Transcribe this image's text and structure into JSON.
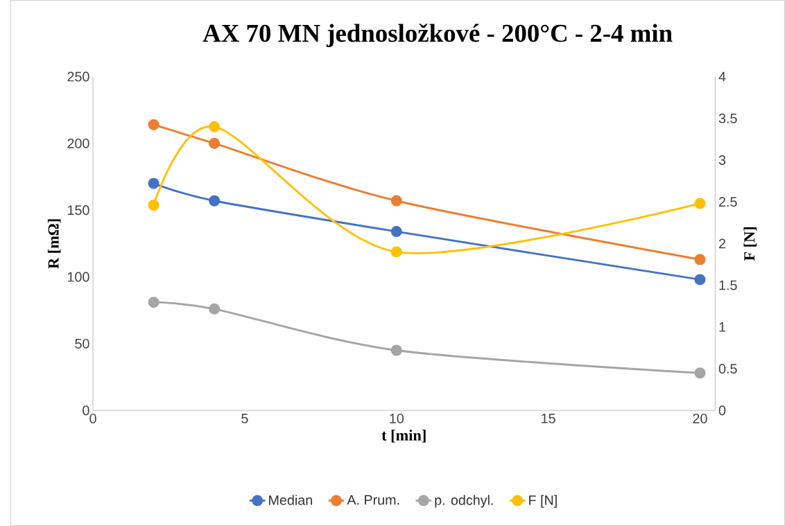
{
  "chart_data": {
    "type": "line",
    "title": "AX 70 MN jednosložkové - 200°C - 2-4 min",
    "xlabel": "t [min]",
    "ylabel": "R [mΩ]",
    "y2label": "F [N]",
    "x": [
      2,
      4,
      10,
      20
    ],
    "series": [
      {
        "name": "Median",
        "color": "#4472c4",
        "values": [
          170,
          157,
          134,
          98
        ]
      },
      {
        "name": "A. Prum.",
        "color": "#ed7d31",
        "values": [
          214,
          200,
          157,
          113
        ]
      },
      {
        "name": "p. odchyl.",
        "color": "#a5a5a5",
        "values": [
          81,
          76,
          45,
          28
        ]
      },
      {
        "name": "F [N]",
        "color": "#ffc000",
        "values": [
          2.46,
          3.4,
          1.9,
          2.48
        ],
        "axis": "y2"
      }
    ],
    "xlim": [
      0,
      20.5
    ],
    "xticks": [
      0,
      5,
      10,
      15,
      20
    ],
    "ylim": [
      0,
      250
    ],
    "yticks": [
      0,
      50,
      100,
      150,
      200,
      250
    ],
    "y2lim": [
      0,
      4
    ],
    "y2ticks": [
      0,
      0.5,
      1,
      1.5,
      2,
      2.5,
      3,
      3.5,
      4
    ],
    "legend": "bottom",
    "marker": "circle"
  }
}
